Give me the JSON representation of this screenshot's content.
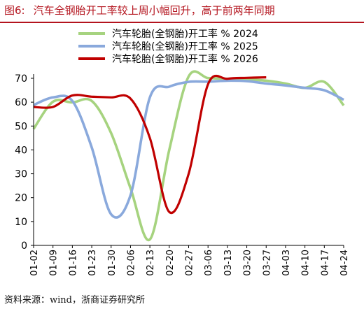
{
  "title": {
    "figure_label": "图6:",
    "text": "汽车全钢胎开工率较上周小幅回升，高于前两年同期"
  },
  "source": "资料来源：wind，浙商证券研究所",
  "chart_data": {
    "type": "line",
    "categories": [
      "01-02",
      "01-09",
      "01-16",
      "01-23",
      "01-30",
      "02-06",
      "02-13",
      "02-20",
      "02-27",
      "03-06",
      "03-13",
      "03-20",
      "03-27",
      "04-03",
      "04-10",
      "04-17",
      "04-24"
    ],
    "ylim": [
      0,
      70
    ],
    "yticks": [
      0,
      10,
      20,
      30,
      40,
      50,
      60,
      70
    ],
    "legend_position": "top-right",
    "series": [
      {
        "name": "汽车轮胎(全钢胎)开工率 % 2024",
        "color": "#a6d37f",
        "values": [
          48.8,
          60.2,
          59.9,
          60.5,
          47.0,
          24.0,
          2.5,
          40.0,
          70.8,
          70.1,
          69.8,
          69.5,
          69.0,
          67.8,
          66.0,
          68.5,
          58.6
        ]
      },
      {
        "name": "汽车轮胎(全钢胎)开工率 % 2025",
        "color": "#8aa9dc",
        "values": [
          58.8,
          62.0,
          60.5,
          41.0,
          13.0,
          21.0,
          62.0,
          66.5,
          68.5,
          68.6,
          69.0,
          68.8,
          67.8,
          67.0,
          66.0,
          65.0,
          61.0
        ]
      },
      {
        "name": "汽车轮胎(全钢胎)开工率 % 2026",
        "color": "#c00000",
        "values": [
          58.0,
          58.0,
          62.8,
          62.3,
          62.0,
          61.5,
          45.0,
          14.0,
          30.0,
          67.5,
          69.8,
          70.2,
          70.4,
          null,
          null,
          null,
          null
        ]
      }
    ]
  }
}
